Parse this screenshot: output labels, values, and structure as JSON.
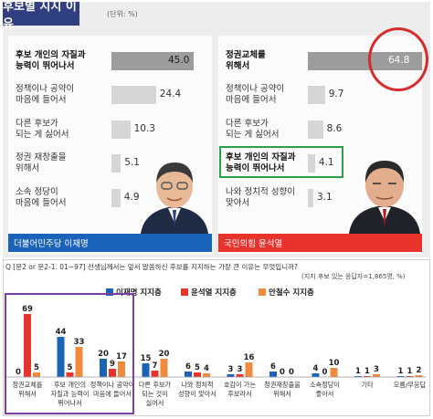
{
  "header": {
    "title": "후보별 지지 이유",
    "unit": "(단위: %)"
  },
  "colors": {
    "navy": "#2f3f80",
    "lee": "#1b63b8",
    "yoon": "#e8322c",
    "ahn": "#f08a3c",
    "bar_gray": "#9c9c9c",
    "bar_light": "#d6d6d6",
    "annotation_red": "#d62b2b",
    "annotation_green": "#2ca049",
    "annotation_purple": "#7b3fa1"
  },
  "left_panel": {
    "candidate_label": "더불어민주당 이재명",
    "rows": [
      {
        "label_line1": "후보 개인의 자질과",
        "label_line2": "능력이 뛰어나서",
        "value": 45.0,
        "value_text": "45.0"
      },
      {
        "label_line1": "정책이나 공약이",
        "label_line2": "마음에 들어서",
        "value": 24.4,
        "value_text": "24.4"
      },
      {
        "label_line1": "다른 후보가",
        "label_line2": "되는 게 싫어서",
        "value": 10.3,
        "value_text": "10.3"
      },
      {
        "label_line1": "정권 재창출을",
        "label_line2": "위해서",
        "value": 5.1,
        "value_text": "5.1"
      },
      {
        "label_line1": "소속 정당이",
        "label_line2": "마음에 들어서",
        "value": 4.9,
        "value_text": "4.9"
      }
    ]
  },
  "right_panel": {
    "candidate_label": "국민의힘 윤석열",
    "rows": [
      {
        "label_line1": "정권교체를",
        "label_line2": "위해서",
        "value": 64.8,
        "value_text": "64.8"
      },
      {
        "label_line1": "정책이나 공약이",
        "label_line2": "마음에 들어서",
        "value": 9.7,
        "value_text": "9.7"
      },
      {
        "label_line1": "다른 후보가",
        "label_line2": "되는 게 싫어서",
        "value": 8.6,
        "value_text": "8.6"
      },
      {
        "label_line1": "후보 개인의 자질과",
        "label_line2": "능력이 뛰어나서",
        "value": 4.1,
        "value_text": "4.1"
      },
      {
        "label_line1": "나와 정치적 성향이",
        "label_line2": "맞아서",
        "value": 3.1,
        "value_text": "3.1"
      }
    ]
  },
  "bottom": {
    "question": "Q [문2 or 문2-1. 01~97] 선생님께서는 앞서 말씀하신 후보를 지지하는 가장 큰 이유는 무엇입니까?",
    "sample_note": "(지지 후보 있는 응답자=1,865명, %)"
  },
  "chart_data": [
    {
      "type": "bar",
      "orientation": "horizontal",
      "title": "후보별 지지 이유",
      "unit": "%",
      "panel": "더불어민주당 이재명",
      "categories": [
        "후보 개인의 자질과 능력이 뛰어나서",
        "정책이나 공약이 마음에 들어서",
        "다른 후보가 되는 게 싫어서",
        "정권 재창출을 위해서",
        "소속 정당이 마음에 들어서"
      ],
      "values": [
        45.0,
        24.4,
        10.3,
        5.1,
        4.9
      ]
    },
    {
      "type": "bar",
      "orientation": "horizontal",
      "unit": "%",
      "panel": "국민의힘 윤석열",
      "categories": [
        "정권교체를 위해서",
        "정책이나 공약이 마음에 들어서",
        "다른 후보가 되는 게 싫어서",
        "후보 개인의 자질과 능력이 뛰어나서",
        "나와 정치적 성향이 맞아서"
      ],
      "values": [
        64.8,
        9.7,
        8.6,
        4.1,
        3.1
      ]
    },
    {
      "type": "bar",
      "orientation": "vertical",
      "unit": "%",
      "ylim": [
        0,
        75
      ],
      "grid": false,
      "legend_placement": "top",
      "categories": [
        [
          "정권교체를",
          "위해서"
        ],
        [
          "후보 개인의",
          "자질과 능력이",
          "뛰어나서"
        ],
        [
          "정책이나 공약이",
          "마음에 들어서"
        ],
        [
          "다른 후보가",
          "되는 것이",
          "싫어서"
        ],
        [
          "나와 정치적",
          "성향이 맞아서"
        ],
        [
          "호감이 가는",
          "후보라서"
        ],
        [
          "정권재창출을",
          "위해서"
        ],
        [
          "소속정당이",
          "좋아서"
        ],
        [
          "기타"
        ],
        [
          "모름/무응답"
        ]
      ],
      "series": [
        {
          "name": "이재명 지지층",
          "color": "#1b63b8",
          "values": [
            0,
            44,
            20,
            15,
            6,
            3,
            6,
            4,
            1,
            1
          ]
        },
        {
          "name": "윤석열 지지층",
          "color": "#e8322c",
          "values": [
            69,
            5,
            9,
            7,
            5,
            3,
            0,
            0,
            1,
            1
          ]
        },
        {
          "name": "안철수 지지층",
          "color": "#f08a3c",
          "values": [
            5,
            33,
            17,
            20,
            4,
            16,
            0,
            10,
            3,
            2
          ]
        }
      ]
    }
  ]
}
